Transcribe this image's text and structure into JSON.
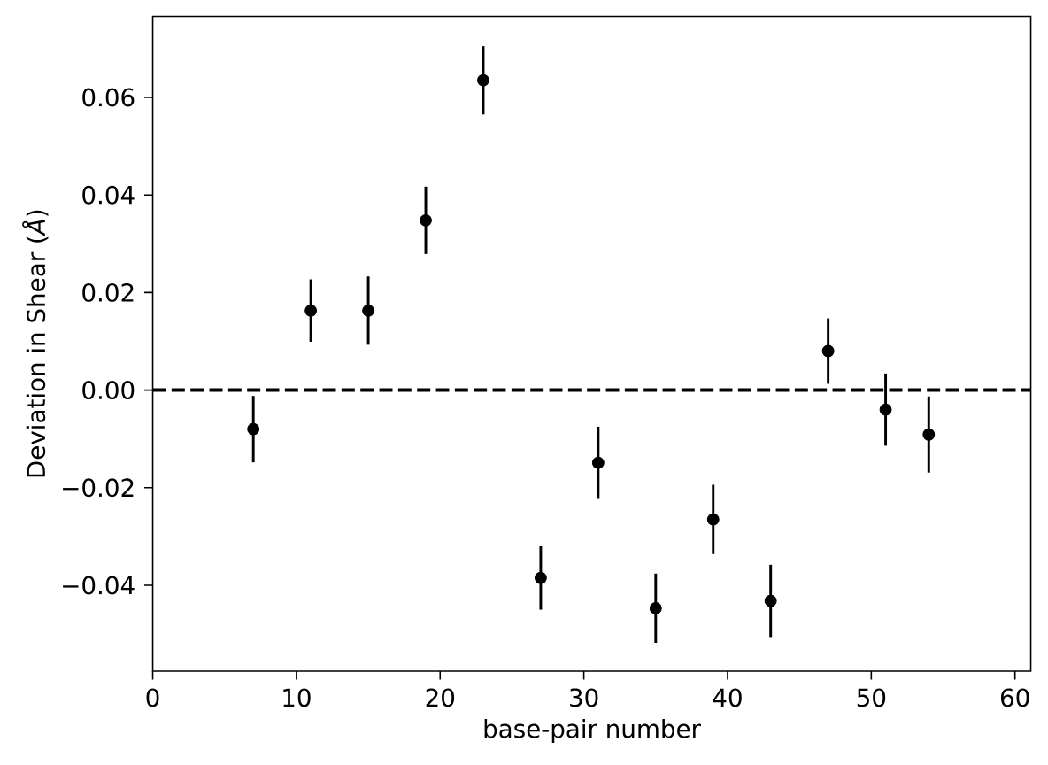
{
  "chart_data": {
    "type": "scatter",
    "xlabel": "base-pair number",
    "ylabel": "Deviation in Shear (*Å*)",
    "x": [
      7,
      11,
      15,
      19,
      23,
      27,
      31,
      35,
      39,
      43,
      47,
      51,
      54
    ],
    "values": [
      -0.008,
      0.0163,
      0.0163,
      0.0348,
      0.0635,
      -0.0385,
      -0.0149,
      -0.0447,
      -0.0265,
      -0.0432,
      0.008,
      -0.004,
      -0.0091
    ],
    "errors": [
      0.0068,
      0.0064,
      0.007,
      0.0069,
      0.007,
      0.0065,
      0.0074,
      0.0071,
      0.0071,
      0.0074,
      0.0067,
      0.0074,
      0.0078
    ],
    "color": "#000000",
    "marker": "circle",
    "xlim": [
      0,
      61.1
    ],
    "ylim": [
      -0.0576,
      0.0766
    ],
    "xticks": [
      0,
      10,
      20,
      30,
      40,
      50,
      60
    ],
    "yticks": [
      {
        "value": -0.04,
        "label": "−0.04"
      },
      {
        "value": -0.02,
        "label": "−0.02"
      },
      {
        "value": 0.0,
        "label": "0.00"
      },
      {
        "value": 0.02,
        "label": "0.02"
      },
      {
        "value": 0.04,
        "label": "0.04"
      },
      {
        "value": 0.06,
        "label": "0.06"
      }
    ],
    "ref_lines": [
      {
        "axis": "y",
        "value": 0,
        "color": "#000000",
        "line_style": "dashed"
      }
    ],
    "grid": false
  }
}
